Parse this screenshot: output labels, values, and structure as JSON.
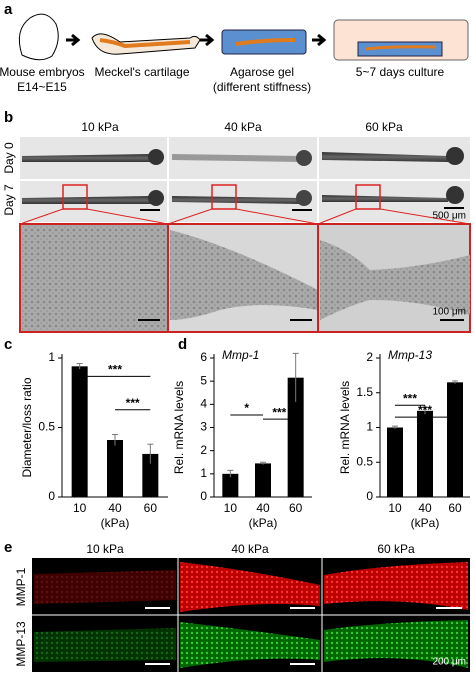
{
  "panel_a": {
    "letter": "a",
    "steps": [
      {
        "label": "Mouse embryos",
        "sublabel": "E14~E15"
      },
      {
        "label": "Meckel's cartilage"
      },
      {
        "label": "Agarose gel",
        "sublabel": "(different stiffness)"
      },
      {
        "label": "5~7 days culture"
      }
    ]
  },
  "panel_b": {
    "letter": "b",
    "columns": [
      "10 kPa",
      "40 kPa",
      "60 kPa"
    ],
    "rows": [
      "Day 0",
      "Day 7"
    ],
    "scale_bars": [
      "500 μm",
      "100 μm"
    ]
  },
  "panel_c": {
    "letter": "c"
  },
  "panel_d": {
    "letter": "d"
  },
  "chart_data": [
    {
      "type": "bar",
      "categories": [
        "10",
        "40",
        "60"
      ],
      "values": [
        0.94,
        0.41,
        0.31
      ],
      "errors": [
        0.02,
        0.04,
        0.07
      ],
      "ylim": [
        0,
        1
      ],
      "yticks": [
        0,
        0.5,
        1
      ],
      "y_label": "Diameter/loss ratio",
      "x_label": "(kPa)",
      "color": "#000000",
      "annotations": [
        "***",
        "***"
      ]
    },
    {
      "type": "bar",
      "title": "Mmp-1",
      "categories": [
        "10",
        "40",
        "60"
      ],
      "values": [
        1.0,
        1.45,
        5.15
      ],
      "errors": [
        0.15,
        0.05,
        1.05
      ],
      "ylim": [
        0,
        6
      ],
      "yticks": [
        0,
        1,
        2,
        3,
        4,
        5,
        6
      ],
      "y_label": "Rel. mRNA levels",
      "x_label": "(kPa)",
      "color": "#000000",
      "annotations": [
        "*",
        "***"
      ]
    },
    {
      "type": "bar",
      "title": "Mmp-13",
      "categories": [
        "10",
        "40",
        "60"
      ],
      "values": [
        1.0,
        1.24,
        1.65
      ],
      "errors": [
        0.02,
        0.05,
        0.02
      ],
      "ylim": [
        0,
        2
      ],
      "yticks": [
        0,
        0.5,
        1,
        1.5,
        2
      ],
      "y_label": "Rel. mRNA levels",
      "x_label": "(kPa)",
      "color": "#000000",
      "annotations": [
        "***",
        "***"
      ]
    }
  ],
  "panel_e": {
    "letter": "e",
    "columns": [
      "10 kPa",
      "40 kPa",
      "60 kPa"
    ],
    "rows": [
      "MMP-1",
      "MMP-13"
    ],
    "scale_bar": "200 μm"
  }
}
